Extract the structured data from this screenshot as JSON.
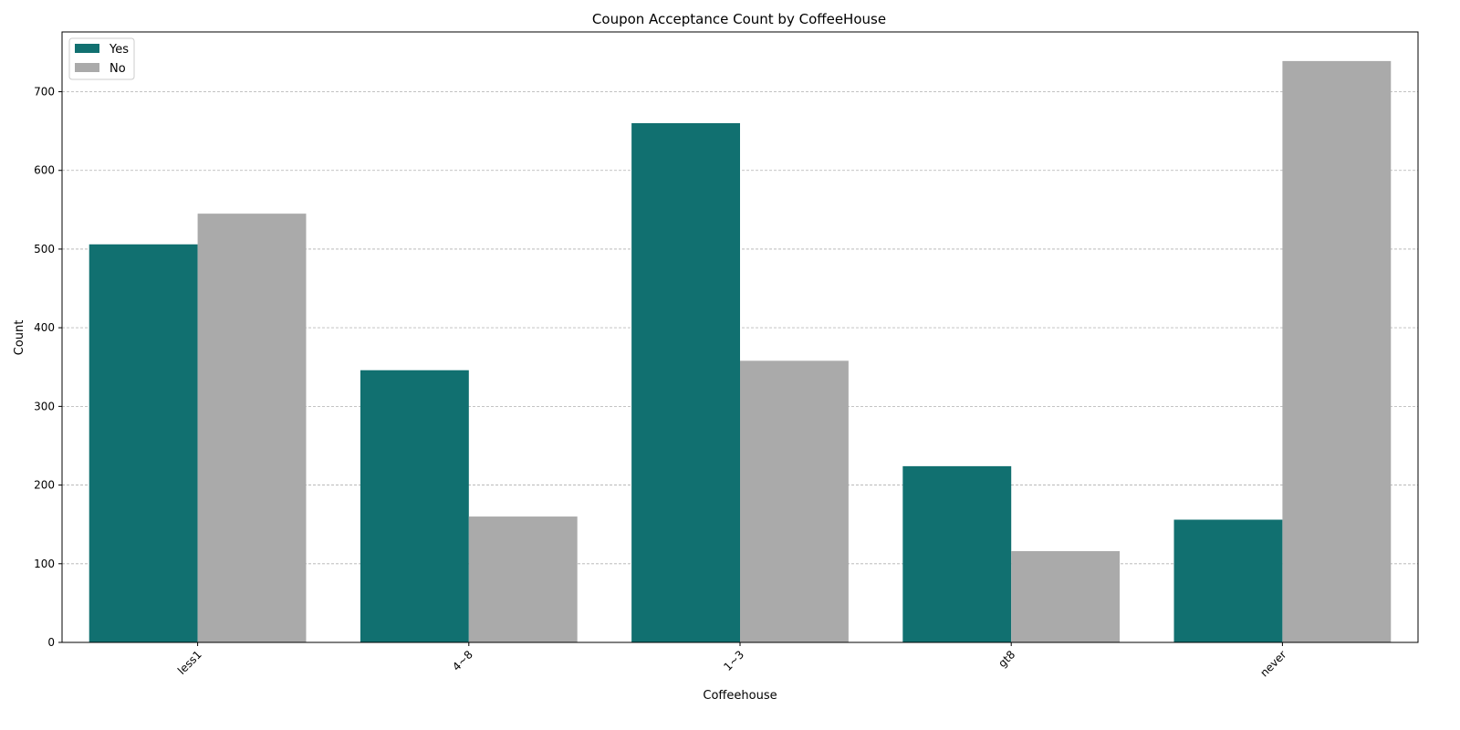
{
  "chart_data": {
    "type": "bar",
    "title": "Coupon Acceptance Count by CoffeeHouse",
    "xlabel": "Coffeehouse",
    "ylabel": "Count",
    "categories": [
      "less1",
      "4~8",
      "1~3",
      "gt8",
      "never"
    ],
    "series": [
      {
        "name": "Yes",
        "color": "#117070",
        "values": [
          506,
          346,
          660,
          224,
          156
        ]
      },
      {
        "name": "No",
        "color": "#aaaaaa",
        "values": [
          545,
          160,
          358,
          116,
          739
        ]
      }
    ],
    "ylim": [
      0,
      776
    ],
    "yticks": [
      0,
      100,
      200,
      300,
      400,
      500,
      600,
      700
    ],
    "grid": "y-dashed",
    "legend_position": "top-left",
    "x_tick_rotation": -45
  }
}
